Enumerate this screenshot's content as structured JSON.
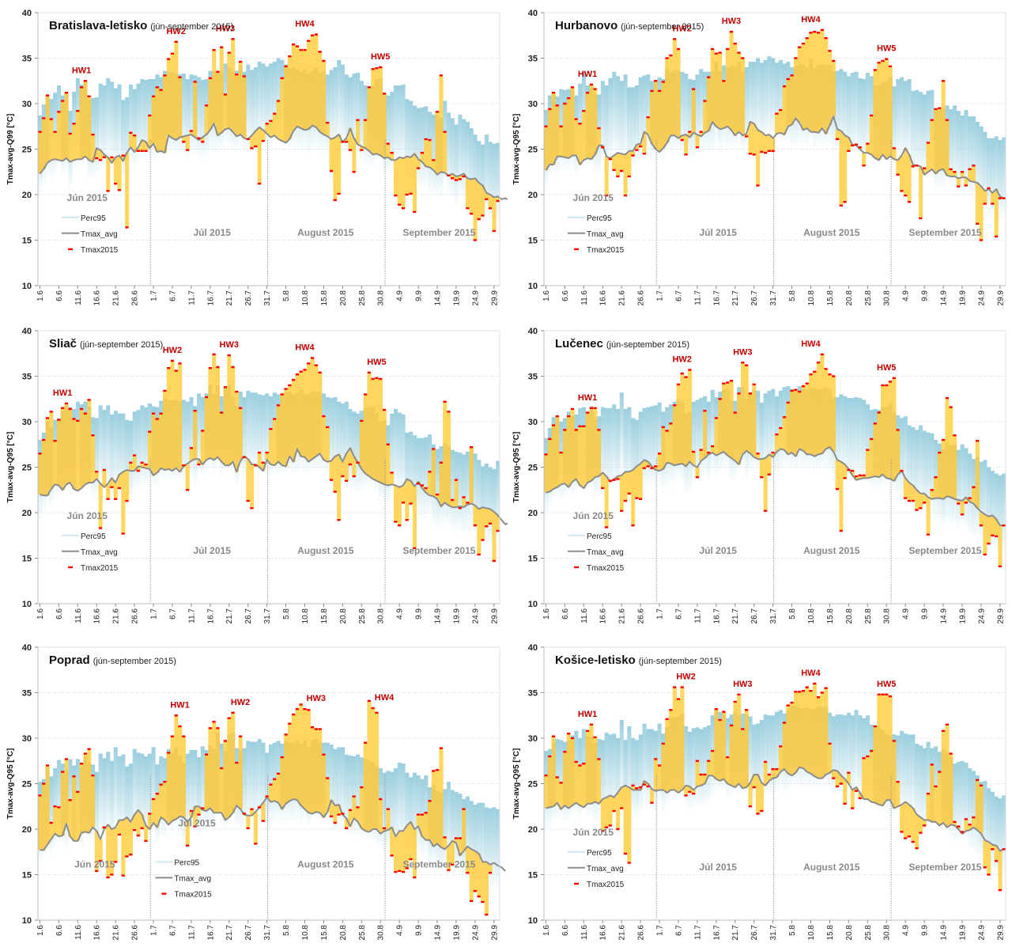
{
  "figure": {
    "period_label": "(jún-september 2015)",
    "legend": {
      "perc": "Perc95",
      "avg": "Tmax_avg",
      "t2015": "Tmax2015"
    },
    "months": [
      "Jún 2015",
      "Júl 2015",
      "August 2015",
      "September 2015"
    ],
    "x_ticks": [
      "1.6",
      "6.6",
      "11.6",
      "16.6",
      "21.6",
      "26.6",
      "1.7",
      "6.7",
      "11.7",
      "16.7",
      "21.7",
      "26.7",
      "31.7",
      "5.8",
      "10.8",
      "15.8",
      "20.8",
      "25.8",
      "30.8",
      "4.9",
      "9.9",
      "14.9",
      "19.9",
      "24.9",
      "29.9"
    ],
    "y_ticks": [
      "10",
      "15",
      "20",
      "25",
      "30",
      "35",
      "40"
    ],
    "colors": {
      "fill": "#ffd24d",
      "perc": "#9ccfdf",
      "avg": "#8c8c8c",
      "marker": "#ff0000",
      "hw": "#c00000"
    }
  },
  "chart_data": [
    {
      "type": "bar",
      "title": "Bratislava-letisko",
      "ylabel": "Tmax-avg-Q99 [°C]",
      "ylim": [
        10,
        40
      ],
      "x_range": [
        "1.6.2015",
        "30.9.2015"
      ],
      "grid": true,
      "legend_position": "bottom-left",
      "heatwaves": [
        {
          "label": "HW1",
          "day": 11
        },
        {
          "label": "HW2",
          "day": 36
        },
        {
          "label": "HW3",
          "day": 49
        },
        {
          "label": "HW4",
          "day": 70
        },
        {
          "label": "HW5",
          "day": 90
        }
      ],
      "series": {
        "perc95": "28.7,29.9,30.8,30.5,31.2,32.0,30.9,31.2,29.2,31.3,32.8,32.1,32.5,30.5,30.6,30.7,32.2,32.0,32.8,32.4,31.7,32.1,30.4,30.7,32.1,31.6,32.2,32.7,32.6,32.7,32.7,33.2,32.9,33.6,33.5,33.4,33.3,33.2,33.3,32.7,33.2,33.1,32.9,32.6,32.7,33.6,33.5,33.5,33.6,34.4,34.0,33.5,33.6,34.2,33.5,34.3,33.7,34.0,34.6,34.4,34.1,34.4,34.6,35.0,34.8,34.3,33.9,34.0,33.8,33.5,33.8,33.3,33.6,33.9,33.4,33.6,33.2,33.7,34.0,34.8,34.3,33.2,32.9,33.3,33.4,32.5,32.0,31.6,31.9,32.7,32.8,31.1,30.9,31.3,32.0,32.0,32.1,30.5,30.3,29.8,29.5,29.6,29.7,29.1,28.8,28.7,28.5,30.3,29.0,28.4,27.7,28.8,28.3,28.0,27.3,26.6,25.9,25.5,26.6,25.8,25.6,25.7",
        "tmax_avg": "22.3,22.8,23.5,23.8,23.9,23.8,23.7,24.0,23.6,23.8,23.9,23.9,24.2,23.8,23.6,25.1,24.9,24.4,24.1,23.5,24.1,24.3,23.7,24.6,25.2,24.7,25.2,26.0,25.8,25.1,25.6,24.7,24.8,24.6,26.5,26.2,26.0,26.3,26.4,26.5,26.6,26.3,26.0,26.3,26.6,27.1,27.8,26.5,26.8,27.2,27.3,26.9,26.4,26.6,26.2,26.1,26.5,27.0,27.4,27.1,26.7,26.3,26.5,26.1,25.9,25.7,26.1,27.0,27.5,27.3,27.1,27.2,27.6,27.4,26.9,26.6,26.4,26.1,26.3,26.6,25.8,26.2,27.3,26.2,25.5,25.3,25.1,24.8,24.4,24.5,24.3,24.0,24.1,23.8,23.8,24.1,24.0,24.2,24.1,24.5,23.9,23.6,23.1,23.0,22.7,22.2,22.5,22.4,22.1,22.3,22.0,22.1,22.3,21.8,21.7,21.8,21.3,21.0,20.2,20.0,19.7,19.8,19.5,19.6,19.4",
        "tmax2015": "26.9,28.4,30.9,28.3,26.9,29.1,30.3,31.2,26.7,27.8,29.2,31.8,32.5,30.8,26.6,24.0,23.8,24.1,20.4,24.1,21.2,20.5,24.3,16.4,26.8,26.5,24.8,24.8,24.8,28.7,30.8,31.8,31.5,33.1,34.9,35.5,36.8,32.9,25.8,24.9,27.0,32.4,26.2,25.8,29.8,32.8,35.9,33.5,36.2,31.0,35.6,37.1,33.2,34.6,33.0,26.1,25.1,25.3,21.2,25.9,27.8,28.1,28.9,30.3,32.8,34.1,35.2,36.5,36.3,35.9,35.9,36.9,37.5,37.6,35.7,34.7,27.9,22.6,19.4,20.1,25.8,25.8,24.9,22.5,28.2,24.9,28.2,31.8,33.8,33.9,34.0,31.1,25.6,24.6,19.9,18.9,18.5,20.0,20.1,18.1,22.9,24.6,26.1,26.0,23.8,29.1,33.1,26.9,22.1,21.8,21.6,21.7,22.0,18.5,17.9,15.0,17.3,17.7,19.5,18.5,16.0,19.3"
      }
    },
    {
      "type": "bar",
      "title": "Hurbanovo",
      "ylabel": "Tmax-avg-Q95 [°C]",
      "ylim": [
        10,
        40
      ],
      "x_range": [
        "1.6.2015",
        "30.9.2015"
      ],
      "grid": true,
      "legend_position": "bottom-left",
      "heatwaves": [
        {
          "label": "HW1",
          "day": 11
        },
        {
          "label": "HW2",
          "day": 36
        },
        {
          "label": "HW3",
          "day": 49
        },
        {
          "label": "HW4",
          "day": 70
        },
        {
          "label": "HW5",
          "day": 90
        }
      ],
      "series": {
        "perc95": "29.3,30.9,31.0,30.8,31.6,31.5,31.6,31.7,30.9,32.2,33.5,32.0,32.0,31.0,31.0,32.5,32.0,32.8,33.5,33.0,32.5,33.2,31.8,31.8,32.0,32.9,33.1,33.2,32.5,32.6,32.9,32.7,33.8,33.4,33.7,33.6,33.5,33.3,32.7,32.6,33.2,33.8,33.5,33.5,33.5,34.6,33.5,34.2,33.9,34.1,34.0,34.6,33.5,34.0,34.6,34.6,35.0,34.5,34.8,35.2,35.0,34.5,34.8,34.4,34.6,34.0,34.1,34.4,34.3,34.0,34.9,33.9,34.2,34.3,34.3,34.2,33.5,33.6,33.8,33.5,33.0,33.4,33.5,32.8,32.7,33.4,33.0,32.0,32.0,32.3,32.5,32.9,31.9,32.7,32.9,32.5,32.7,31.4,31.5,31.3,31.0,31.4,31.5,29.5,29.5,29.4,29.8,29.4,29.8,29.2,28.7,29.3,28.6,28.6,28.0,27.5,26.9,26.2,26.2,26.4,26.0,26.3",
        "tmax_avg": "22.7,23.3,23.3,24.2,24.2,24.1,24.0,24.3,24.3,23.3,23.8,24.0,23.9,24.4,25.4,25.4,24.2,24.0,24.3,24.6,24.5,24.4,24.8,24.8,25.5,25.6,26.9,26.6,25.6,25.0,24.7,25.1,25.7,26.5,26.5,26.2,26.5,26.6,26.3,26.8,26.6,26.4,26.8,27.0,28.0,27.5,27.2,27.3,27.5,27.1,26.5,26.9,26.5,26.7,28.0,27.8,27.1,26.9,26.5,26.6,26.2,26.7,26.8,26.6,27.5,27.7,28.4,27.9,27.1,27.3,26.9,26.9,26.8,27.3,26.7,27.6,28.6,27.2,27.0,26.5,26.3,25.5,25.4,25.0,24.6,24.6,24.4,24.0,23.8,24.4,23.9,24.2,23.9,23.8,24.3,25.1,24.4,23.3,23.2,23.1,22.2,22.5,22.8,22.3,22.7,22.8,22.1,22.0,22.0,21.8,21.9,21.9,21.5,21.4,21.3,20.9,20.4,20.6,20.2,20.6,19.8,19.6",
        "tmax2015": "27.5,29.4,31.2,29.8,27.5,30.0,30.6,31.8,28.3,27.8,29.2,31.2,32.1,31.6,27.3,25.2,19.9,23.9,22.7,22.0,22.6,19.9,22.0,24.3,24.9,25.3,24.5,28.5,31.4,32.5,31.4,32.4,35.0,35.3,37.1,36.0,26.0,24.4,26.9,31.6,25.2,26.9,30.3,32.9,36.0,35.5,35.6,32.5,36.0,37.9,36.6,35.6,35.0,26.4,24.5,24.4,21.0,24.7,24.6,24.8,24.8,28.9,29.3,31.9,32.7,33.1,35.0,36.2,36.6,37.2,37.8,37.9,37.8,38.1,37.2,35.8,34.7,26.1,18.8,19.2,24.8,25.4,25.5,25.2,23.2,25.6,28.7,33.7,34.5,34.7,34.9,34.1,25.1,22.2,20.4,19.9,19.2,23.1,23.2,17.4,22.9,25.7,28.2,29.4,29.5,32.5,28.2,22.8,22.5,20.9,22.5,21.0,22.8,23.2,16.8,15.0,19.0,20.7,19.0,15.4,19.6,19.6"
      }
    },
    {
      "type": "bar",
      "title": "Sliač",
      "ylabel": "Tmax-avg-Q95 [°C]",
      "ylim": [
        10,
        40
      ],
      "x_range": [
        "1.6.2015",
        "30.9.2015"
      ],
      "grid": true,
      "legend_position": "bottom-left",
      "heatwaves": [
        {
          "label": "HW1",
          "day": 6
        },
        {
          "label": "HW2",
          "day": 35
        },
        {
          "label": "HW3",
          "day": 50
        },
        {
          "label": "HW4",
          "day": 70
        },
        {
          "label": "HW5",
          "day": 89
        }
      ],
      "series": {
        "perc95": "28.0,28.8,30.0,29.4,30.2,30.4,31.2,31.8,31.6,31.4,32.2,31.9,32.2,31.6,30.5,30.4,31.8,31.3,31.8,30.8,31.2,30.9,30.9,30.2,30.1,31.1,31.3,31.8,31.6,32.0,31.7,31.6,32.3,32.6,32.4,32.4,32.4,32.3,32.4,32.2,32.7,31.7,33.1,32.7,33.1,34.0,33.1,34.0,32.8,33.7,34.0,32.8,31.7,33.3,32.7,33.4,33.2,33.2,33.0,32.9,33.1,32.8,33.2,33.0,33.1,33.2,33.3,33.0,33.2,33.5,33.0,33.0,33.3,33.2,33.3,33.1,32.7,32.6,32.7,32.2,32.0,32.2,31.4,31.1,30.9,31.2,31.5,31.6,31.7,31.0,30.0,30.1,29.6,30.9,31.4,31.0,30.8,28.8,28.9,28.5,28.2,28.2,28.3,28.6,27.5,27.0,27.3,27.6,27.3,26.9,26.7,26.6,26.4,26.7,27.1,26.5,25.8,25.1,25.4,25.0,24.8,25.7",
        "tmax_avg": "22.0,21.9,21.9,22.6,23.1,23.0,22.5,23.1,23.3,22.6,22.4,22.7,23.1,23.3,23.3,23.7,23.2,22.8,23.2,23.8,23.3,24.2,24.5,24.7,24.6,24.6,25.1,25.0,24.9,24.8,24.1,24.4,24.9,24.7,24.8,24.6,24.9,24.5,25.1,25.4,25.7,25.9,25.9,25.3,25.8,26.0,25.8,26.1,25.6,25.2,25.2,25.6,24.5,25.7,26.2,25.9,25.3,25.3,25.0,24.6,25.8,25.3,25.2,25.6,25.2,25.1,26.2,25.6,27.0,26.2,26.1,25.6,25.9,26.2,26.5,25.8,25.6,25.7,26.2,26.4,25.6,26.5,27.1,26.2,25.5,24.8,24.3,24.0,23.7,23.5,23.3,23.1,23.0,23.1,23.0,22.8,23.0,23.7,23.5,22.9,23.4,22.7,22.2,21.9,21.8,21.5,20.7,21.1,20.8,20.6,20.6,20.7,20.6,20.9,21.0,20.8,20.4,20.6,20.5,20.4,20.1,19.7,19.2,18.7,18.9,19.3,18.5,18.0",
        "tmax2015": "26.5,28.0,30.4,31.1,27.9,30.2,31.5,32.0,31.4,30.3,30.1,31.4,30.9,32.4,28.5,24.5,18.3,24.7,21.5,22.8,21.5,22.7,17.7,21.3,25.5,26.3,24.6,25.5,25.3,28.9,30.9,30.3,30.9,33.4,35.9,36.7,35.6,36.4,25.2,22.5,27.1,31.2,25.3,29.0,32.7,35.9,37.4,36.0,31.0,33.8,37.3,36.0,33.3,31.5,26.1,21.3,20.5,25.2,26.6,25.5,26.6,29.2,30.3,31.8,33.0,33.6,34.0,34.6,35.2,35.5,35.7,36.4,37.0,36.2,35.4,30.6,29.4,23.6,22.3,19.2,24.0,23.5,25.3,24.0,25.5,30.1,33.0,35.4,34.7,34.8,34.7,31.3,27.5,24.4,19.0,18.6,21.1,19.2,21.0,16.1,23.2,23.0,22.7,24.5,27.0,22.0,25.5,32.2,31.1,21.4,23.6,20.5,21.7,21.1,27.2,18.6,15.4,17.0,18.5,18.8,14.7,18.0"
      }
    },
    {
      "type": "bar",
      "title": "Lučenec",
      "ylabel": "Tmax-avg-Q95 [°C]",
      "ylim": [
        10,
        40
      ],
      "x_range": [
        "1.6.2015",
        "30.9.2015"
      ],
      "grid": true,
      "legend_position": "bottom-left",
      "heatwaves": [
        {
          "label": "HW1",
          "day": 11
        },
        {
          "label": "HW2",
          "day": 36
        },
        {
          "label": "HW3",
          "day": 52
        },
        {
          "label": "HW4",
          "day": 70
        },
        {
          "label": "HW5",
          "day": 90
        }
      ],
      "series": {
        "perc95": "28.2,29.3,30.5,30.4,30.0,30.4,31.1,30.6,30.8,31.5,31.6,31.0,31.7,30.3,30.6,31.6,31.5,31.5,31.9,31.4,33.2,31.4,31.6,30.4,30.2,31.1,31.5,31.6,31.7,31.8,32.1,31.1,31.6,31.9,32.2,32.5,32.2,30.9,31.1,32.2,32.4,32.6,32.8,32.2,33.5,32.7,33.3,33.5,33.6,32.3,32.3,33.8,33.8,32.5,33.2,33.5,33.4,32.1,33.1,33.4,33.6,32.8,33.4,33.8,33.9,33.6,33.6,33.9,33.6,33.5,33.7,33.6,33.5,33.6,33.8,33.5,32.6,32.7,33.0,32.8,32.6,32.6,32.7,32.6,32.4,31.9,31.3,31.4,31.3,31.6,31.7,32.1,31.0,30.7,30.4,30.6,29.6,29.4,29.1,29.6,29.0,28.8,28.7,28.0,27.6,27.0,27.7,27.4,27.4,26.9,27.5,27.1,26.5,25.9,26.1,25.6,25.8,25.0,24.6,24.3,24.1,24.3",
        "tmax_avg": "22.2,22.3,22.6,22.8,23.1,23.2,22.8,23.4,23.7,23.0,22.7,23.3,23.5,23.9,24.0,24.4,24.0,23.4,23.7,24.0,24.1,24.5,24.5,24.7,25.1,25.4,25.8,25.6,25.1,24.7,24.6,24.8,25.5,25.4,25.2,25.3,25.4,25.1,25.6,25.2,25.0,25.7,26.0,26.4,26.6,26.3,26.5,26.7,26.3,26.0,25.7,25.3,26.4,26.8,26.5,26.1,25.9,25.9,26.0,26.4,26.1,26.7,27.0,26.9,26.4,26.6,26.2,27.0,26.8,26.4,26.4,26.2,26.4,26.5,27.0,27.2,26.7,25.8,25.6,25.3,24.8,24.1,23.6,23.7,23.8,23.8,23.9,24.0,23.9,24.2,23.8,23.7,23.5,24.2,24.6,23.8,23.3,23.0,22.5,22.1,22.1,21.7,21.5,21.6,21.6,21.5,21.8,21.7,21.5,21.4,21.3,21.7,21.2,21.0,20.5,20.1,19.8,19.6,19.7,19.3,18.6,18.6",
        "tmax2015": "26.4,28.1,29.6,30.6,26.6,29.1,30.6,31.4,29.1,29.5,29.5,31.0,31.5,31.5,29.1,22.7,18.4,23.5,23.6,23.7,20.2,21.3,22.1,18.6,21.6,21.5,24.9,25.1,24.9,25.1,26.5,29.4,29.0,29.8,31.8,34.1,35.3,34.9,35.7,26.7,23.9,26.9,31.2,26.6,27.3,30.4,32.5,34.2,34.3,34.5,31.0,33.1,36.5,36.2,33.1,34.1,26.5,23.9,20.2,24.2,26.6,28.6,29.3,30.5,32.1,33.4,33.5,33.3,33.9,34.2,35.2,35.5,36.5,37.4,35.8,35.2,35.0,22.6,18.0,23.8,24.7,24.6,24.0,24.1,24.1,26.9,28.1,29.8,31.0,34.0,34.0,34.4,34.8,29.1,24.6,21.6,21.3,21.3,20.3,20.5,21.1,17.6,22.5,23.9,26.6,28.0,32.6,31.6,28.5,21.0,19.8,21.1,21.6,22.8,27.9,18.6,15.4,16.6,17.5,17.4,14.1,18.6"
      }
    },
    {
      "type": "bar",
      "title": "Poprad",
      "ylabel": "Tmax-avg-Q95 [°C]",
      "ylim": [
        10,
        40
      ],
      "x_range": [
        "1.6.2015",
        "30.9.2015"
      ],
      "grid": true,
      "legend_position": "bottom-center",
      "heatwaves": [
        {
          "label": "HW1",
          "day": 37
        },
        {
          "label": "HW2",
          "day": 53
        },
        {
          "label": "HW3",
          "day": 73
        },
        {
          "label": "HW4",
          "day": 91
        }
      ],
      "series": {
        "perc95": "25.2,25.5,26.8,25.8,26.7,27.6,27.2,26.5,27.7,27.0,27.7,26.8,28.0,27.3,27.1,26.3,28.3,27.8,28.5,27.5,29.0,28.0,28.2,26.9,27.2,28.8,28.4,28.3,28.0,28.3,29.0,27.1,28.0,27.8,28.8,28.4,29.0,28.1,27.2,28.3,28.7,28.7,27.9,29.1,28.7,29.2,28.8,30.6,29.4,28.5,30.4,30.6,28.9,28.7,28.9,29.7,29.6,29.6,29.9,29.5,28.4,29.3,29.5,29.7,29.4,29.7,29.5,29.5,29.8,29.4,29.8,29.0,29.8,29.9,29.5,29.5,29.5,29.3,28.8,29.0,29.0,28.2,28.1,28.0,28.2,27.9,27.7,27.5,27.3,26.9,26.7,26.2,26.4,26.3,26.7,27.3,27.2,26.2,25.7,26.2,25.9,25.5,25.9,24.6,24.8,24.2,24.0,24.4,25.2,24.3,24.1,23.9,23.3,23.6,23.1,22.7,22.9,22.9,22.4,22.3,22.4,22.2",
        "tmax_avg": "17.7,17.7,18.3,18.9,19.5,19.2,19.3,20.6,19.2,18.7,18.7,19.6,19.7,19.6,20.2,19.8,18.9,20.0,20.5,20.0,20.2,21.0,21.0,21.3,20.8,21.6,22.1,21.6,20.4,20.0,20.7,20.2,21.3,21.0,20.5,20.9,21.1,21.4,21.3,20.8,21.3,22.5,22.5,22.1,22.0,22.3,21.8,21.8,21.8,21.0,21.3,21.8,22.6,22.2,21.6,21.5,21.5,21.9,22.4,22.9,23.5,23.0,23.1,22.9,22.2,22.8,23.1,23.3,23.2,22.6,22.2,21.8,21.7,21.9,21.8,21.3,21.9,23.2,22.6,22.7,21.6,21.2,20.3,21.2,20.8,20.1,19.8,19.7,20.0,20.0,19.5,19.8,19.9,20.2,19.2,19.8,19.8,20.4,20.8,20.0,20.3,19.2,18.8,18.8,18.1,18.4,18.0,17.8,18.2,18.7,18.5,17.1,17.6,18.1,17.8,17.6,17.3,16.4,16.4,16.1,16.3,16.0,15.8,15.4",
        "tmax2015": "23.7,25.0,27.0,20.7,22.5,22.4,26.3,27.7,23.2,25.8,24.1,27.2,28.3,28.8,25.9,15.4,16.5,20.2,14.7,15.0,16.4,19.4,14.9,17.0,17.2,19.9,19.3,20.1,18.7,21.7,23.3,23.9,24.9,25.2,28.4,30.2,32.5,31.3,30.2,18.2,22.0,20.3,21.6,22.3,28.2,31.1,31.8,31.1,26.7,29.7,32.2,32.8,27.3,30.2,21.7,20.1,22.2,18.4,22.4,20.9,23.6,24.9,25.5,26.1,27.9,30.4,31.6,32.6,33.2,33.7,33.2,33.1,31.2,31.0,31.0,28.2,25.6,21.4,20.7,21.6,21.7,20.1,22.1,23.6,22.4,24.6,29.5,34.1,33.3,32.8,23.3,20.1,22.2,17.1,15.3,15.4,15.3,15.7,16.7,14.7,21.6,21.6,21.8,23.1,26.4,26.5,28.9,19.1,15.5,16.1,19.0,19.0,22.2,15.2,12.1,13.2,12.6,12.0,10.6,15.2"
      }
    },
    {
      "type": "bar",
      "title": "Košice-letisko",
      "ylabel": "Tmax-avg-Q95 [°C]",
      "ylim": [
        10,
        40
      ],
      "x_range": [
        "1.6.2015",
        "30.9.2015"
      ],
      "grid": true,
      "legend_position": "bottom-left",
      "heatwaves": [
        {
          "label": "HW1",
          "day": 11
        },
        {
          "label": "HW2",
          "day": 37
        },
        {
          "label": "HW3",
          "day": 52
        },
        {
          "label": "HW4",
          "day": 70
        },
        {
          "label": "HW5",
          "day": 90
        }
      ],
      "series": {
        "perc95": "28.6,28.8,29.5,29.9,29.8,29.6,29.7,30.3,30.8,30.0,31.0,30.2,30.1,29.5,29.9,29.8,30.6,30.4,30.5,30.0,32.0,29.8,31.3,30.0,29.8,30.4,31.6,31.0,31.0,30.8,31.6,30.5,31.2,32.3,32.2,32.3,32.7,31.3,30.7,31.1,31.2,31.0,31.2,31.4,32.5,33.1,32.9,32.9,32.2,32.6,32.9,32.5,32.7,32.6,32.4,31.5,31.6,32.0,32.6,32.5,32.5,32.9,33.1,32.7,33.0,33.5,33.6,33.3,33.3,33.4,33.2,33.2,33.5,33.4,33.4,32.8,32.4,32.6,32.6,32.5,32.8,32.5,33.1,32.5,32.2,32.5,31.5,31.4,31.2,30.9,30.5,30.2,30.4,30.3,30.8,30.5,30.4,30.4,29.4,29.2,28.9,29.6,28.9,29.1,28.5,28.8,28.4,27.9,27.2,27.4,27.5,27.3,26.7,26.4,25.9,25.2,25.3,24.5,24.1,23.6,23.4,23.7",
        "tmax_avg": "22.3,22.4,22.5,22.9,22.2,22.6,22.3,22.6,22.9,22.6,22.4,22.8,22.8,23.0,22.8,23.3,23.5,23.7,23.5,24.0,24.6,24.8,24.6,24.3,24.3,24.3,25.3,25.0,24.4,24.2,24.3,24.3,24.0,24.3,24.3,24.0,24.3,24.8,24.7,24.3,24.7,24.8,25.0,25.9,25.9,25.5,25.3,25.5,25.0,24.8,24.6,25.0,24.5,24.6,25.1,26.0,26.0,25.1,24.8,25.3,25.6,25.7,26.3,26.6,26.1,25.9,26.2,26.8,26.7,26.3,26.1,25.8,25.6,25.6,26.0,26.2,26.5,26.4,25.9,25.5,25.0,24.3,24.6,24.0,23.3,23.3,23.0,22.9,22.7,22.6,23.2,23.2,22.3,22.5,22.7,23.0,22.7,22.3,21.6,21.3,21.0,21.0,20.8,20.8,20.4,20.7,20.2,20.5,20.4,20.0,19.5,19.8,19.9,20.2,19.9,19.5,18.8,18.6,18.3,18.2,17.6,17.8",
        "tmax2015": "25.9,28.0,30.2,25.7,25.1,28.5,30.5,30.0,27.4,27.0,27.2,30.8,31.5,30.1,27.7,19.8,20.2,20.4,22.0,20.0,22.3,17.3,16.3,24.8,24.5,24.6,24.9,24.7,22.9,27.7,27.0,29.4,32.1,33.1,35.6,34.3,35.6,23.7,24.1,23.9,27.5,26.0,26.0,27.5,28.6,33.2,32.0,32.9,27.9,31.4,34.0,34.8,31.0,33.1,22.5,24.6,21.7,22.0,27.4,26.0,26.6,26.6,29.1,31.7,33.6,33.9,35.1,35.1,35.2,35.6,35.2,36.0,34.5,35.0,35.5,29.4,25.6,24.7,25.0,22.8,26.2,22.3,24.2,23.4,27.8,28.0,28.6,31.3,34.8,34.8,34.8,34.6,29.7,25.2,19.7,19.0,19.2,18.6,17.9,19.6,20.4,23.9,27.1,24.7,26.3,30.8,31.5,28.3,20.8,20.3,19.7,21.1,20.5,21.3,25.4,24.8,15.8,15.0,17.8,16.5,13.3,17.8"
      }
    }
  ]
}
